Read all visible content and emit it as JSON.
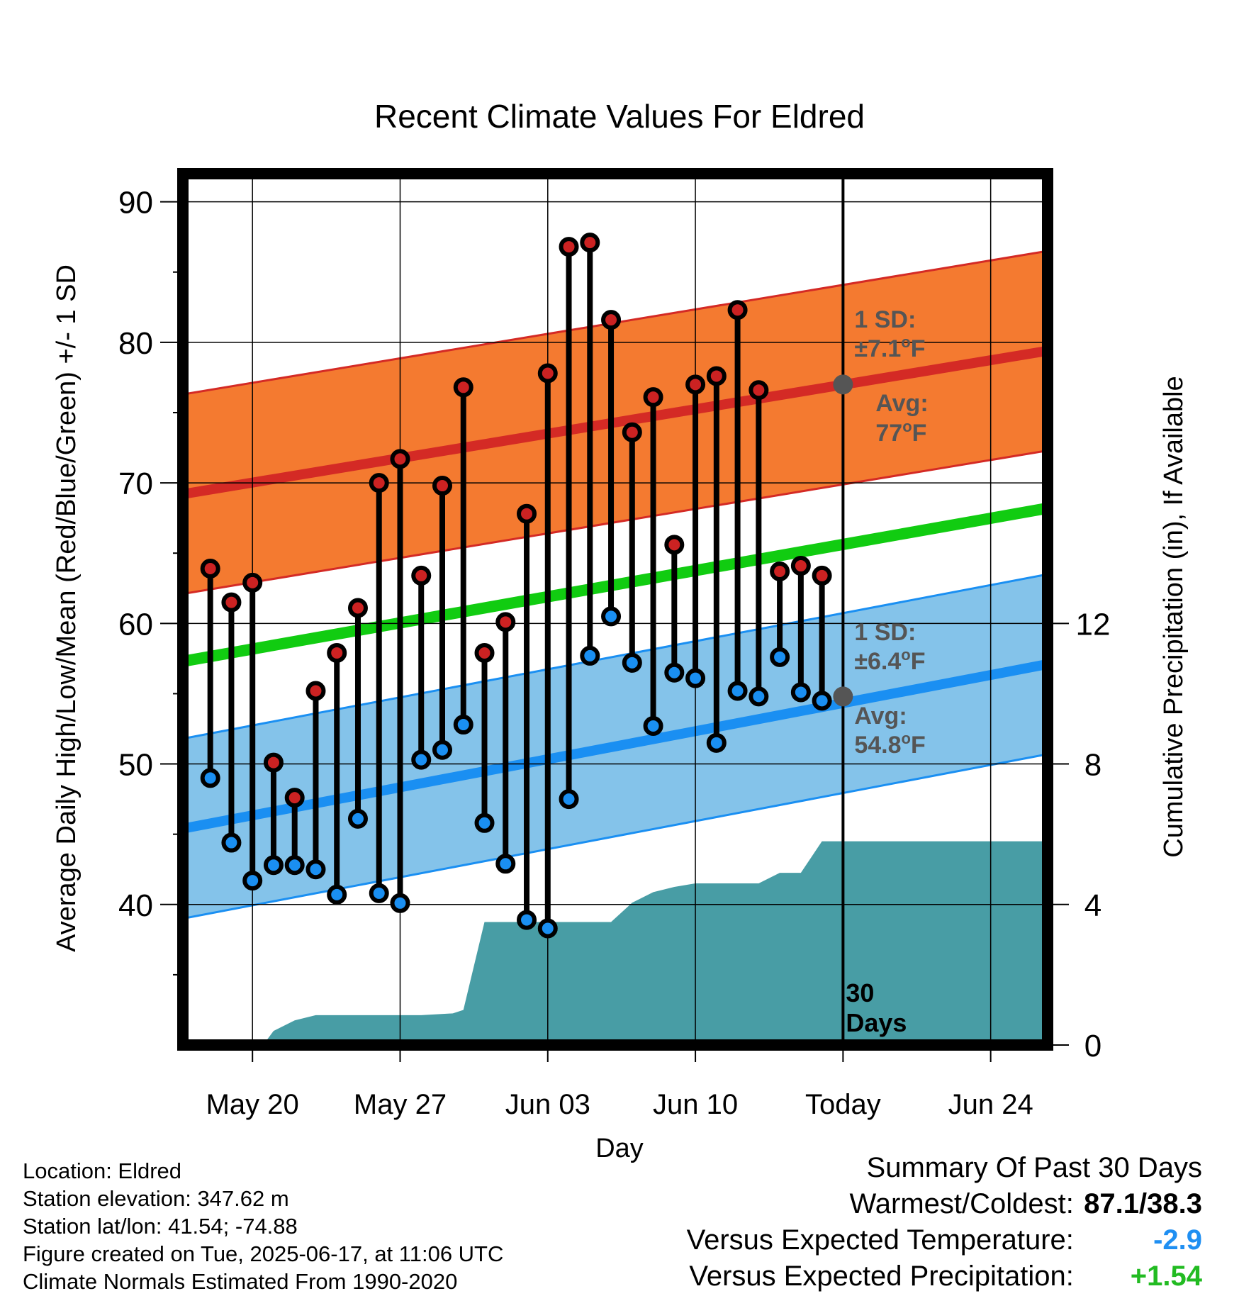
{
  "chart_data": {
    "type": "line",
    "title": "Recent Climate Values For Eldred",
    "xlabel": "Day",
    "ylabel_left": "Average Daily High/Low/Mean (Red/Blue/Green) +/- 1 SD",
    "ylabel_right": "Cumulative Precipitation (in), If Available",
    "x_tick_labels": [
      "May 20",
      "May 27",
      "Jun 03",
      "Jun 10",
      "Today",
      "Jun 24"
    ],
    "x_tick_days": [
      20,
      27,
      34,
      41,
      48,
      55
    ],
    "x_range_days": [
      16.7,
      57.7
    ],
    "y_left_ticks": [
      40,
      50,
      60,
      70,
      80,
      90
    ],
    "y_left_range": [
      30,
      92
    ],
    "y_right_ticks": [
      0,
      4,
      8,
      12
    ],
    "today_day": 48,
    "today_label": "30 Days",
    "daily_high": [
      {
        "day": 18,
        "value": 63.9
      },
      {
        "day": 19,
        "value": 61.5
      },
      {
        "day": 20,
        "value": 62.9
      },
      {
        "day": 21,
        "value": 50.1
      },
      {
        "day": 22,
        "value": 47.6
      },
      {
        "day": 23,
        "value": 55.2
      },
      {
        "day": 24,
        "value": 57.9
      },
      {
        "day": 25,
        "value": 61.1
      },
      {
        "day": 26,
        "value": 70.0
      },
      {
        "day": 27,
        "value": 71.7
      },
      {
        "day": 28,
        "value": 63.4
      },
      {
        "day": 29,
        "value": 69.8
      },
      {
        "day": 30,
        "value": 76.8
      },
      {
        "day": 31,
        "value": 57.9
      },
      {
        "day": 32,
        "value": 60.1
      },
      {
        "day": 33,
        "value": 67.8
      },
      {
        "day": 34,
        "value": 77.8
      },
      {
        "day": 35,
        "value": 86.8
      },
      {
        "day": 36,
        "value": 87.1
      },
      {
        "day": 37,
        "value": 81.6
      },
      {
        "day": 38,
        "value": 73.6
      },
      {
        "day": 39,
        "value": 76.1
      },
      {
        "day": 40,
        "value": 65.6
      },
      {
        "day": 41,
        "value": 77.0
      },
      {
        "day": 42,
        "value": 77.6
      },
      {
        "day": 43,
        "value": 82.3
      },
      {
        "day": 44,
        "value": 76.6
      },
      {
        "day": 45,
        "value": 63.7
      },
      {
        "day": 46,
        "value": 64.1
      },
      {
        "day": 47,
        "value": 63.4
      }
    ],
    "daily_low": [
      {
        "day": 18,
        "value": 49.0
      },
      {
        "day": 19,
        "value": 44.4
      },
      {
        "day": 20,
        "value": 41.7
      },
      {
        "day": 21,
        "value": 42.8
      },
      {
        "day": 22,
        "value": 42.8
      },
      {
        "day": 23,
        "value": 42.5
      },
      {
        "day": 24,
        "value": 40.7
      },
      {
        "day": 25,
        "value": 46.1
      },
      {
        "day": 26,
        "value": 40.8
      },
      {
        "day": 27,
        "value": 40.1
      },
      {
        "day": 28,
        "value": 50.3
      },
      {
        "day": 29,
        "value": 51.0
      },
      {
        "day": 30,
        "value": 52.8
      },
      {
        "day": 31,
        "value": 45.8
      },
      {
        "day": 32,
        "value": 42.9
      },
      {
        "day": 33,
        "value": 38.9
      },
      {
        "day": 34,
        "value": 38.3
      },
      {
        "day": 35,
        "value": 47.5
      },
      {
        "day": 36,
        "value": 57.7
      },
      {
        "day": 37,
        "value": 60.5
      },
      {
        "day": 38,
        "value": 57.2
      },
      {
        "day": 39,
        "value": 52.7
      },
      {
        "day": 40,
        "value": 56.5
      },
      {
        "day": 41,
        "value": 56.1
      },
      {
        "day": 42,
        "value": 51.5
      },
      {
        "day": 43,
        "value": 55.2
      },
      {
        "day": 44,
        "value": 54.8
      },
      {
        "day": 45,
        "value": 57.6
      },
      {
        "day": 46,
        "value": 55.1
      },
      {
        "day": 47,
        "value": 54.5
      }
    ],
    "normal_high": {
      "start_day": 16.7,
      "start": 69.2,
      "end_day": 57.7,
      "end": 79.4
    },
    "normal_high_sd": 7.1,
    "normal_low": {
      "start_day": 16.7,
      "start": 45.4,
      "end_day": 57.7,
      "end": 57.1
    },
    "normal_low_sd": 6.4,
    "normal_mean": {
      "start_day": 16.7,
      "start": 57.3,
      "end_day": 57.7,
      "end": 68.2
    },
    "cumulative_precip": [
      {
        "day": 16.7,
        "value": 0
      },
      {
        "day": 17.0,
        "value": 0
      },
      {
        "day": 17.2,
        "value": 0
      },
      {
        "day": 20.5,
        "value": 0
      },
      {
        "day": 21.0,
        "value": 0.4
      },
      {
        "day": 22.0,
        "value": 0.7
      },
      {
        "day": 23.0,
        "value": 0.85
      },
      {
        "day": 28.0,
        "value": 0.85
      },
      {
        "day": 29.5,
        "value": 0.9
      },
      {
        "day": 30.0,
        "value": 1.0
      },
      {
        "day": 31.0,
        "value": 3.5
      },
      {
        "day": 37.0,
        "value": 3.5
      },
      {
        "day": 38.0,
        "value": 4.05
      },
      {
        "day": 39.0,
        "value": 4.35
      },
      {
        "day": 40.0,
        "value": 4.5
      },
      {
        "day": 41.0,
        "value": 4.6
      },
      {
        "day": 44.0,
        "value": 4.6
      },
      {
        "day": 45.0,
        "value": 4.9
      },
      {
        "day": 46.0,
        "value": 4.9
      },
      {
        "day": 47.0,
        "value": 5.8
      },
      {
        "day": 57.7,
        "value": 5.8
      }
    ],
    "precip_scale": {
      "in_per_tick": 4,
      "tick_deg_step": 10
    }
  },
  "annotations": {
    "high_sd_line1": "1 SD:",
    "high_sd_line2_prefix": "±7.1",
    "high_sd_unit": "F",
    "high_avg_line1": "Avg:",
    "high_avg_prefix": "77",
    "low_sd_line1": "1 SD:",
    "low_sd_line2_prefix": "±6.4",
    "low_avg_line1": "Avg:",
    "low_avg_prefix": "54.8",
    "degree_symbol": "o",
    "today_high_avg": 77,
    "today_low_avg": 54.8,
    "days_line1": "30",
    "days_line2": "Days"
  },
  "footer": {
    "location": "Location: Eldred",
    "elevation": "Station elevation: 347.62 m",
    "latlon": "Station lat/lon: 41.54; -74.88",
    "created": "Figure created on Tue, 2025-06-17, at 11:06 UTC",
    "normals": "Climate Normals Estimated From 1990-2020"
  },
  "summary": {
    "heading": "Summary Of Past 30 Days",
    "warmest_label": "Warmest/Coldest:",
    "warmest_value": "87.1/38.3",
    "temp_label": "Versus Expected Temperature:",
    "temp_value": "-2.9",
    "precip_label": "Versus Expected Precipitation:",
    "precip_value": "+1.54"
  },
  "colors": {
    "high_band": "#f47a30",
    "high_line": "#d42a25",
    "low_band": "#84c3ea",
    "low_line": "#1a8ff2",
    "mean_line": "#11cc11",
    "precip_fill": "#489da5",
    "high_marker": "#cc2222",
    "low_marker": "#1a8ff2",
    "annotation_text": "#555555"
  }
}
